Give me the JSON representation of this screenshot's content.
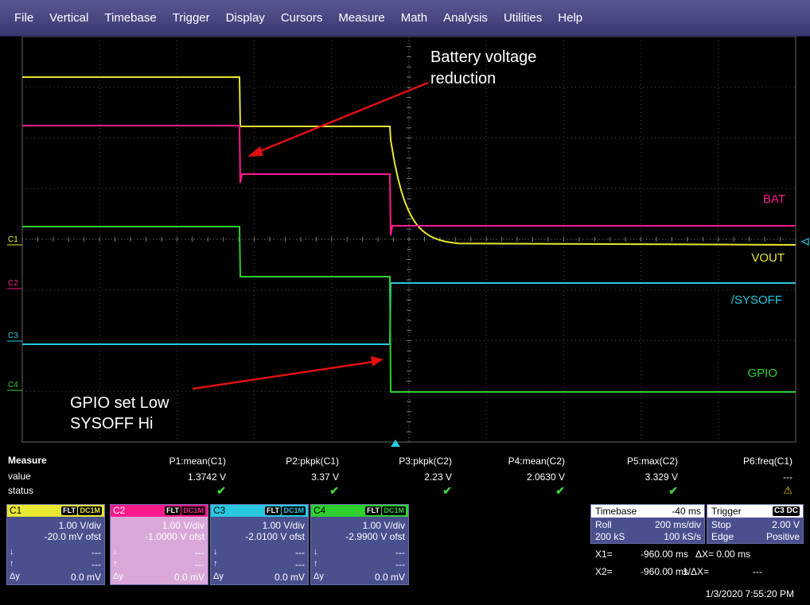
{
  "menu": [
    "File",
    "Vertical",
    "Timebase",
    "Trigger",
    "Display",
    "Cursors",
    "Measure",
    "Math",
    "Analysis",
    "Utilities",
    "Help"
  ],
  "colors": {
    "c1": "#e8e830",
    "c2": "#ff1a8c",
    "c3": "#29c8e0",
    "c4": "#2ed02e",
    "arrow": "#e01010",
    "grid": "#555"
  },
  "annotations": {
    "battery_line1": "Battery voltage",
    "battery_line2": "reduction",
    "gpio_line1": "GPIO set Low",
    "gpio_line2": "SYSOFF Hi"
  },
  "trace_labels": {
    "bat": "BAT",
    "vout": "VOUT",
    "sysoff": "/SYSOFF",
    "gpio": "GPIO"
  },
  "channel_markers": {
    "c1": "C1",
    "c2": "C2",
    "c3": "C3",
    "c4": "C4"
  },
  "measure": {
    "title": "Measure",
    "row_value": "value",
    "row_status": "status",
    "params": [
      {
        "name": "P1:mean(C1)",
        "value": "1.3742 V",
        "status": "check"
      },
      {
        "name": "P2:pkpk(C1)",
        "value": "3.37 V",
        "status": "check"
      },
      {
        "name": "P3:pkpk(C2)",
        "value": "2.23 V",
        "status": "check"
      },
      {
        "name": "P4:mean(C2)",
        "value": "2.0630 V",
        "status": "check"
      },
      {
        "name": "P5:max(C2)",
        "value": "3.329 V",
        "status": "check"
      },
      {
        "name": "P6:freq(C1)",
        "value": "---",
        "status": "warn"
      }
    ]
  },
  "channels": [
    {
      "name": "C1",
      "flt": "FLT",
      "dc": "DC1M",
      "vdiv": "1.00 V/div",
      "ofst": "-20.0 mV ofst",
      "r1": "---",
      "r2": "---",
      "dy_label": "Δy",
      "dy": "0.0 mV",
      "color": "#e8e830"
    },
    {
      "name": "C2",
      "flt": "FLT",
      "dc": "DC1M",
      "vdiv": "1.00 V/div",
      "ofst": "-1.0000 V ofst",
      "r1": "---",
      "r2": "---",
      "dy_label": "Δy",
      "dy": "0.0 mV",
      "color": "#ff1a8c"
    },
    {
      "name": "C3",
      "flt": "FLT",
      "dc": "DC1M",
      "vdiv": "1.00 V/div",
      "ofst": "-2.0100 V ofst",
      "r1": "---",
      "r2": "---",
      "dy_label": "Δy",
      "dy": "0.0 mV",
      "color": "#29c8e0"
    },
    {
      "name": "C4",
      "flt": "FLT",
      "dc": "DC1M",
      "vdiv": "1.00 V/div",
      "ofst": "-2.9900 V ofst",
      "r1": "---",
      "r2": "---",
      "dy_label": "Δy",
      "dy": "0.0 mV",
      "color": "#2ed02e"
    }
  ],
  "timebase": {
    "title": "Timebase",
    "value": "-40 ms",
    "mode": "Roll",
    "rate": "200 ms/div",
    "samples": "200 kS",
    "srate": "100 kS/s"
  },
  "trigger": {
    "title": "Trigger",
    "source": "C3",
    "coupling": "DC",
    "mode": "Stop",
    "level": "2.00 V",
    "type": "Edge",
    "slope": "Positive"
  },
  "cursors": {
    "x1": "X1=",
    "x1v": "-960.00 ms",
    "dx": "ΔX=",
    "dxv": "0.00 ms",
    "x2": "X2=",
    "x2v": "-960.00 ms",
    "inv": "1/ΔX=",
    "invv": "---"
  },
  "timestamp": "1/3/2020 7:55:20 PM"
}
